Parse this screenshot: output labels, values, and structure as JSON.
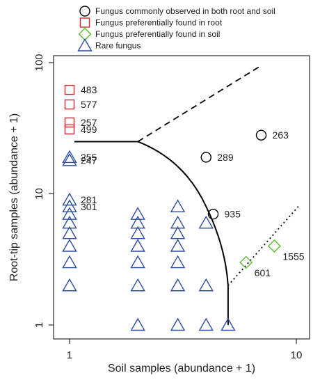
{
  "chart_data": {
    "type": "scatter",
    "xlabel": "Soil samples (abundance + 1)",
    "ylabel": "Root-tip samples (abundance + 1)",
    "x_scale": "log",
    "y_scale": "log",
    "xlim": [
      1,
      11
    ],
    "ylim": [
      1,
      100
    ],
    "x_ticks": [
      {
        "value": 1,
        "label": "1"
      },
      {
        "value": 10,
        "label": "10"
      }
    ],
    "y_ticks": [
      {
        "value": 1,
        "label": "1"
      },
      {
        "value": 10,
        "label": "10"
      },
      {
        "value": 100,
        "label": "100"
      }
    ],
    "grid": false,
    "legend": {
      "placement": "top-right",
      "entries": [
        {
          "key": "both",
          "label": "Fungus commonly observed in both root and soil",
          "marker": "circle",
          "color": "#000000"
        },
        {
          "key": "root",
          "label": "Fungus preferentially found in root",
          "marker": "square",
          "color": "#e0262b"
        },
        {
          "key": "soil",
          "label": "Fungus preferentially found in soil",
          "marker": "diamond",
          "color": "#5cb832"
        },
        {
          "key": "rare",
          "label": "Rare fungus",
          "marker": "triangle",
          "color": "#2b4ea2"
        }
      ]
    },
    "series": [
      {
        "key": "both",
        "marker": "circle",
        "color": "#000000",
        "points": [
          {
            "x": 7,
            "y": 28,
            "label": "263"
          },
          {
            "x": 4,
            "y": 19,
            "label": "289"
          },
          {
            "x": 4.3,
            "y": 7,
            "label": "935"
          }
        ]
      },
      {
        "key": "root",
        "marker": "square",
        "color": "#e0262b",
        "points": [
          {
            "x": 1,
            "y": 62,
            "label": "483"
          },
          {
            "x": 1,
            "y": 48,
            "label": "577"
          },
          {
            "x": 1,
            "y": 35,
            "label": "257"
          },
          {
            "x": 1,
            "y": 31,
            "label": "499"
          }
        ]
      },
      {
        "key": "soil",
        "marker": "diamond",
        "color": "#5cb832",
        "points": [
          {
            "x": 8,
            "y": 4,
            "label": "1555"
          },
          {
            "x": 6,
            "y": 3,
            "label": "601"
          }
        ]
      },
      {
        "key": "rare",
        "marker": "triangle",
        "color": "#2b4ea2",
        "points": [
          {
            "x": 1,
            "y": 19,
            "label": "255"
          },
          {
            "x": 1,
            "y": 18,
            "label": "247"
          },
          {
            "x": 1,
            "y": 9,
            "label": "281"
          },
          {
            "x": 1,
            "y": 8,
            "label": "301"
          },
          {
            "x": 1,
            "y": 7
          },
          {
            "x": 1,
            "y": 6
          },
          {
            "x": 1,
            "y": 5
          },
          {
            "x": 1,
            "y": 4
          },
          {
            "x": 1,
            "y": 3
          },
          {
            "x": 1,
            "y": 2
          },
          {
            "x": 2,
            "y": 7
          },
          {
            "x": 2,
            "y": 6
          },
          {
            "x": 2,
            "y": 5
          },
          {
            "x": 2,
            "y": 4
          },
          {
            "x": 2,
            "y": 3
          },
          {
            "x": 2,
            "y": 2
          },
          {
            "x": 2,
            "y": 1
          },
          {
            "x": 3,
            "y": 8
          },
          {
            "x": 3,
            "y": 6
          },
          {
            "x": 3,
            "y": 5
          },
          {
            "x": 3,
            "y": 4
          },
          {
            "x": 3,
            "y": 3
          },
          {
            "x": 3,
            "y": 2
          },
          {
            "x": 3,
            "y": 1
          },
          {
            "x": 4,
            "y": 6
          },
          {
            "x": 4,
            "y": 2
          },
          {
            "x": 4,
            "y": 1
          },
          {
            "x": 5,
            "y": 1
          }
        ]
      }
    ],
    "boundary_lines": [
      {
        "style": "solid",
        "points": [
          [
            1.05,
            25
          ],
          [
            2,
            25
          ],
          [
            3,
            16
          ],
          [
            4,
            8
          ],
          [
            4.6,
            4
          ],
          [
            5,
            2
          ],
          [
            5,
            1
          ]
        ]
      },
      {
        "style": "dashed",
        "points": [
          [
            2,
            25
          ],
          [
            7,
            95
          ]
        ]
      },
      {
        "style": "dotted",
        "points": [
          [
            5,
            2
          ],
          [
            10.2,
            8
          ]
        ]
      }
    ]
  }
}
